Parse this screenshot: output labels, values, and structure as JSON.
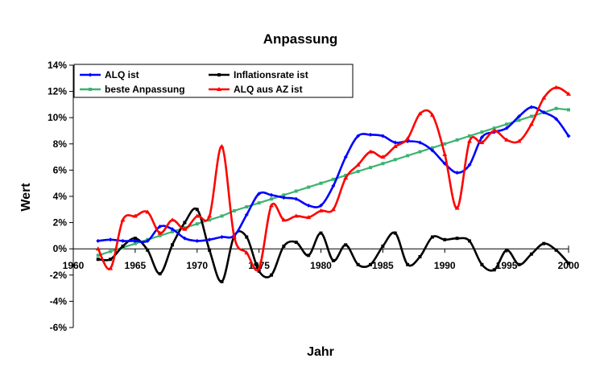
{
  "chart_data": {
    "type": "line",
    "title": "Anpassung",
    "xlabel": "Jahr",
    "ylabel": "Wert",
    "xlim": [
      1960,
      2000
    ],
    "ylim": [
      -6,
      14
    ],
    "x_ticks": [
      1960,
      1965,
      1970,
      1975,
      1980,
      1985,
      1990,
      1995,
      2000
    ],
    "y_ticks": [
      -6,
      -4,
      -2,
      0,
      2,
      4,
      6,
      8,
      10,
      12,
      14
    ],
    "x_tick_labels": [
      "1960",
      "1965",
      "1970",
      "1975",
      "1980",
      "1985",
      "1990",
      "1995",
      "2000"
    ],
    "y_tick_labels": [
      "-6%",
      "-4%",
      "-2%",
      "0%",
      "2%",
      "4%",
      "6%",
      "8%",
      "10%",
      "12%",
      "14%"
    ],
    "grid": false,
    "legend_position": "top-left, two columns",
    "series": [
      {
        "name": "ALQ ist",
        "color": "#0000ff",
        "marker": "diamond",
        "x": [
          1962,
          1963,
          1964,
          1965,
          1966,
          1967,
          1968,
          1969,
          1970,
          1971,
          1972,
          1973,
          1974,
          1975,
          1976,
          1977,
          1978,
          1979,
          1980,
          1981,
          1982,
          1983,
          1984,
          1985,
          1986,
          1987,
          1988,
          1989,
          1990,
          1991,
          1992,
          1993,
          1994,
          1995,
          1996,
          1997,
          1998,
          1999,
          2000
        ],
        "y": [
          0.6,
          0.7,
          0.6,
          0.6,
          0.6,
          1.7,
          1.5,
          0.8,
          0.6,
          0.7,
          0.9,
          1.0,
          2.6,
          4.2,
          4.1,
          3.9,
          3.8,
          3.3,
          3.3,
          4.8,
          7.0,
          8.6,
          8.7,
          8.6,
          8.1,
          8.2,
          8.1,
          7.5,
          6.5,
          5.8,
          6.4,
          8.5,
          8.9,
          9.2,
          10.1,
          10.8,
          10.4,
          9.9,
          8.6
        ]
      },
      {
        "name": "Inflationsrate ist",
        "color": "#000000",
        "marker": "square",
        "x": [
          1962,
          1963,
          1964,
          1965,
          1966,
          1967,
          1968,
          1969,
          1970,
          1971,
          1972,
          1973,
          1974,
          1975,
          1976,
          1977,
          1978,
          1979,
          1980,
          1981,
          1982,
          1983,
          1984,
          1985,
          1986,
          1987,
          1988,
          1989,
          1990,
          1991,
          1992,
          1993,
          1994,
          1995,
          1996,
          1997,
          1998,
          1999,
          2000
        ],
        "y": [
          -0.8,
          -0.8,
          0.2,
          0.8,
          -0.1,
          -1.9,
          0.3,
          2.0,
          3.0,
          -0.1,
          -2.5,
          1.0,
          0.9,
          -1.7,
          -2.0,
          0.2,
          0.5,
          -0.5,
          1.2,
          -0.9,
          0.3,
          -1.2,
          -1.2,
          0.2,
          1.2,
          -1.2,
          -0.6,
          0.9,
          0.7,
          0.8,
          0.6,
          -1.2,
          -1.6,
          -0.1,
          -1.2,
          -0.4,
          0.4,
          -0.1,
          -1.1
        ]
      },
      {
        "name": "beste Anpassung",
        "color": "#3cb371",
        "marker": "square",
        "x": [
          1962,
          1963,
          1964,
          1965,
          1966,
          1967,
          1968,
          1969,
          1970,
          1971,
          1972,
          1973,
          1974,
          1975,
          1976,
          1977,
          1978,
          1979,
          1980,
          1981,
          1982,
          1983,
          1984,
          1985,
          1986,
          1987,
          1988,
          1989,
          1990,
          1991,
          1992,
          1993,
          1994,
          1995,
          1996,
          1997,
          1998,
          1999,
          2000
        ],
        "y": [
          -0.5,
          -0.2,
          0.1,
          0.4,
          0.7,
          1.0,
          1.3,
          1.6,
          1.9,
          2.2,
          2.5,
          2.9,
          3.2,
          3.5,
          3.8,
          4.1,
          4.4,
          4.7,
          5.0,
          5.3,
          5.6,
          5.9,
          6.2,
          6.5,
          6.8,
          7.1,
          7.4,
          7.7,
          8.0,
          8.3,
          8.6,
          8.9,
          9.2,
          9.5,
          9.8,
          10.1,
          10.4,
          10.7,
          10.6
        ]
      },
      {
        "name": "ALQ aus AZ ist",
        "color": "#ff0000",
        "marker": "triangle",
        "x": [
          1962,
          1963,
          1964,
          1965,
          1966,
          1967,
          1968,
          1969,
          1970,
          1971,
          1972,
          1973,
          1974,
          1975,
          1976,
          1977,
          1978,
          1979,
          1980,
          1981,
          1982,
          1983,
          1984,
          1985,
          1986,
          1987,
          1988,
          1989,
          1990,
          1991,
          1992,
          1993,
          1994,
          1995,
          1996,
          1997,
          1998,
          1999,
          2000
        ],
        "y": [
          0.0,
          -1.5,
          2.2,
          2.5,
          2.8,
          1.2,
          2.2,
          1.5,
          2.5,
          2.5,
          7.8,
          0.9,
          -0.3,
          -1.5,
          3.3,
          2.2,
          2.5,
          2.4,
          2.9,
          3.0,
          5.4,
          6.4,
          7.4,
          7.0,
          7.8,
          8.4,
          10.3,
          10.2,
          7.2,
          3.1,
          8.2,
          8.1,
          9.0,
          8.3,
          8.2,
          9.5,
          11.5,
          12.3,
          11.8
        ]
      }
    ]
  }
}
